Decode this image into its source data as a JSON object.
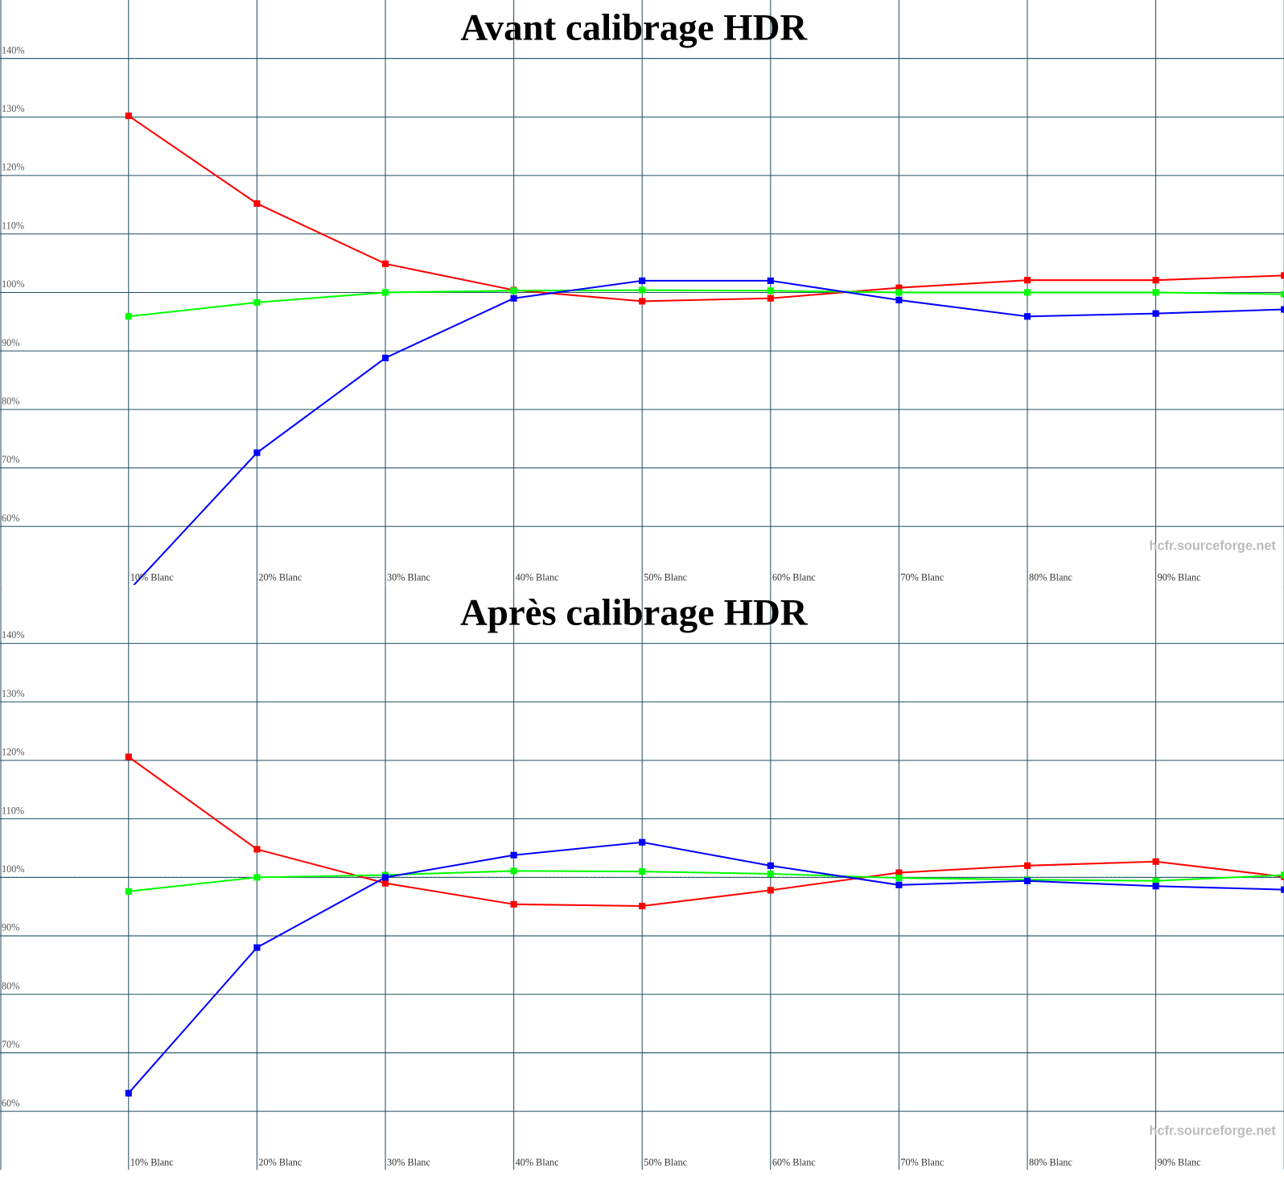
{
  "chart_data": [
    {
      "type": "line",
      "title": "Avant calibrage HDR",
      "categories": [
        "10% Blanc",
        "20% Blanc",
        "30% Blanc",
        "40% Blanc",
        "50% Blanc",
        "60% Blanc",
        "70% Blanc",
        "80% Blanc",
        "90% Blanc",
        null
      ],
      "series": [
        {
          "color": "#ff0000",
          "values": [
            130.2,
            115.2,
            104.9,
            100.4,
            98.5,
            99.0,
            100.8,
            102.1,
            102.1,
            102.9
          ]
        },
        {
          "color": "#00ff00",
          "values": [
            95.9,
            98.3,
            100.0,
            100.3,
            100.4,
            100.3,
            100.0,
            100.0,
            100.0,
            99.7
          ]
        },
        {
          "color": "#0000ff",
          "values": [
            49,
            72.6,
            88.8,
            99.0,
            102.0,
            102.0,
            98.7,
            95.9,
            96.4,
            97.1
          ]
        }
      ],
      "ylim": [
        50,
        150
      ],
      "yticks": [
        {
          "value": 60,
          "label": "60%"
        },
        {
          "value": 70,
          "label": "70%"
        },
        {
          "value": 80,
          "label": "80%"
        },
        {
          "value": 90,
          "label": "90%"
        },
        {
          "value": 100,
          "label": "100%"
        },
        {
          "value": 110,
          "label": "110%"
        },
        {
          "value": 120,
          "label": "120%"
        },
        {
          "value": 130,
          "label": "130%"
        },
        {
          "value": 140,
          "label": "140%"
        }
      ],
      "grid": true,
      "reference_line": 100,
      "watermark": "hcfr.sourceforge.net"
    },
    {
      "type": "line",
      "title": "Après calibrage HDR",
      "categories": [
        "10% Blanc",
        "20% Blanc",
        "30% Blanc",
        "40% Blanc",
        "50% Blanc",
        "60% Blanc",
        "70% Blanc",
        "80% Blanc",
        "90% Blanc",
        null
      ],
      "series": [
        {
          "color": "#ff0000",
          "values": [
            120.6,
            104.8,
            99.0,
            95.4,
            95.1,
            97.8,
            100.8,
            102.0,
            102.7,
            100.1
          ]
        },
        {
          "color": "#00ff00",
          "values": [
            97.6,
            100.0,
            100.4,
            101.1,
            101.0,
            100.6,
            99.9,
            99.6,
            99.4,
            100.4
          ]
        },
        {
          "color": "#0000ff",
          "values": [
            63.1,
            88.0,
            100.0,
            103.8,
            106.0,
            102.0,
            98.7,
            99.4,
            98.5,
            97.9
          ]
        }
      ],
      "ylim": [
        50,
        150
      ],
      "yticks": [
        {
          "value": 60,
          "label": "60%"
        },
        {
          "value": 70,
          "label": "70%"
        },
        {
          "value": 80,
          "label": "80%"
        },
        {
          "value": 90,
          "label": "90%"
        },
        {
          "value": 100,
          "label": "100%"
        },
        {
          "value": 110,
          "label": "110%"
        },
        {
          "value": 120,
          "label": "120%"
        },
        {
          "value": 130,
          "label": "130%"
        },
        {
          "value": 140,
          "label": "140%"
        }
      ],
      "grid": true,
      "reference_line": 100,
      "watermark": "hcfr.sourceforge.net"
    }
  ]
}
